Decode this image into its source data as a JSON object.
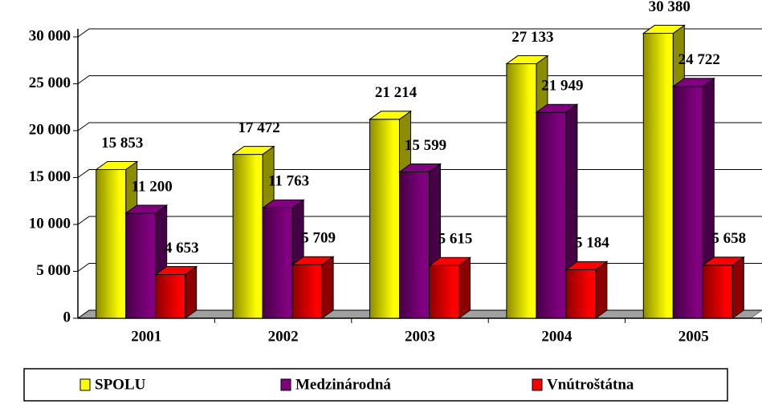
{
  "chart_data": {
    "type": "bar3d",
    "categories": [
      "2001",
      "2002",
      "2003",
      "2004",
      "2005"
    ],
    "series": [
      {
        "name": "SPOLU",
        "color": "#ffff00",
        "values": [
          15853,
          17472,
          21214,
          27133,
          30380
        ],
        "value_labels": [
          "15 853",
          "17 472",
          "21 214",
          "27 133",
          "30 380"
        ]
      },
      {
        "name": "Medzinárodná",
        "color": "#800080",
        "values": [
          11200,
          11763,
          15599,
          21949,
          24722
        ],
        "value_labels": [
          "11 200",
          "11 763",
          "15 599",
          "21 949",
          "24 722"
        ]
      },
      {
        "name": "Vnútroštátna",
        "color": "#ff0000",
        "values": [
          4653,
          5709,
          5615,
          5184,
          5658
        ],
        "value_labels": [
          "4 653",
          "5 709",
          "5 615",
          "5 184",
          "5 658"
        ]
      }
    ],
    "ylim": [
      0,
      30000
    ],
    "yticks": [
      {
        "value": 0,
        "label": "0"
      },
      {
        "value": 5000,
        "label": "5 000"
      },
      {
        "value": 10000,
        "label": "10 000"
      },
      {
        "value": 15000,
        "label": "15 000"
      },
      {
        "value": 20000,
        "label": "20 000"
      },
      {
        "value": 25000,
        "label": "25 000"
      },
      {
        "value": 30000,
        "label": "30 000"
      }
    ],
    "grid": true,
    "legend": "bottom"
  }
}
